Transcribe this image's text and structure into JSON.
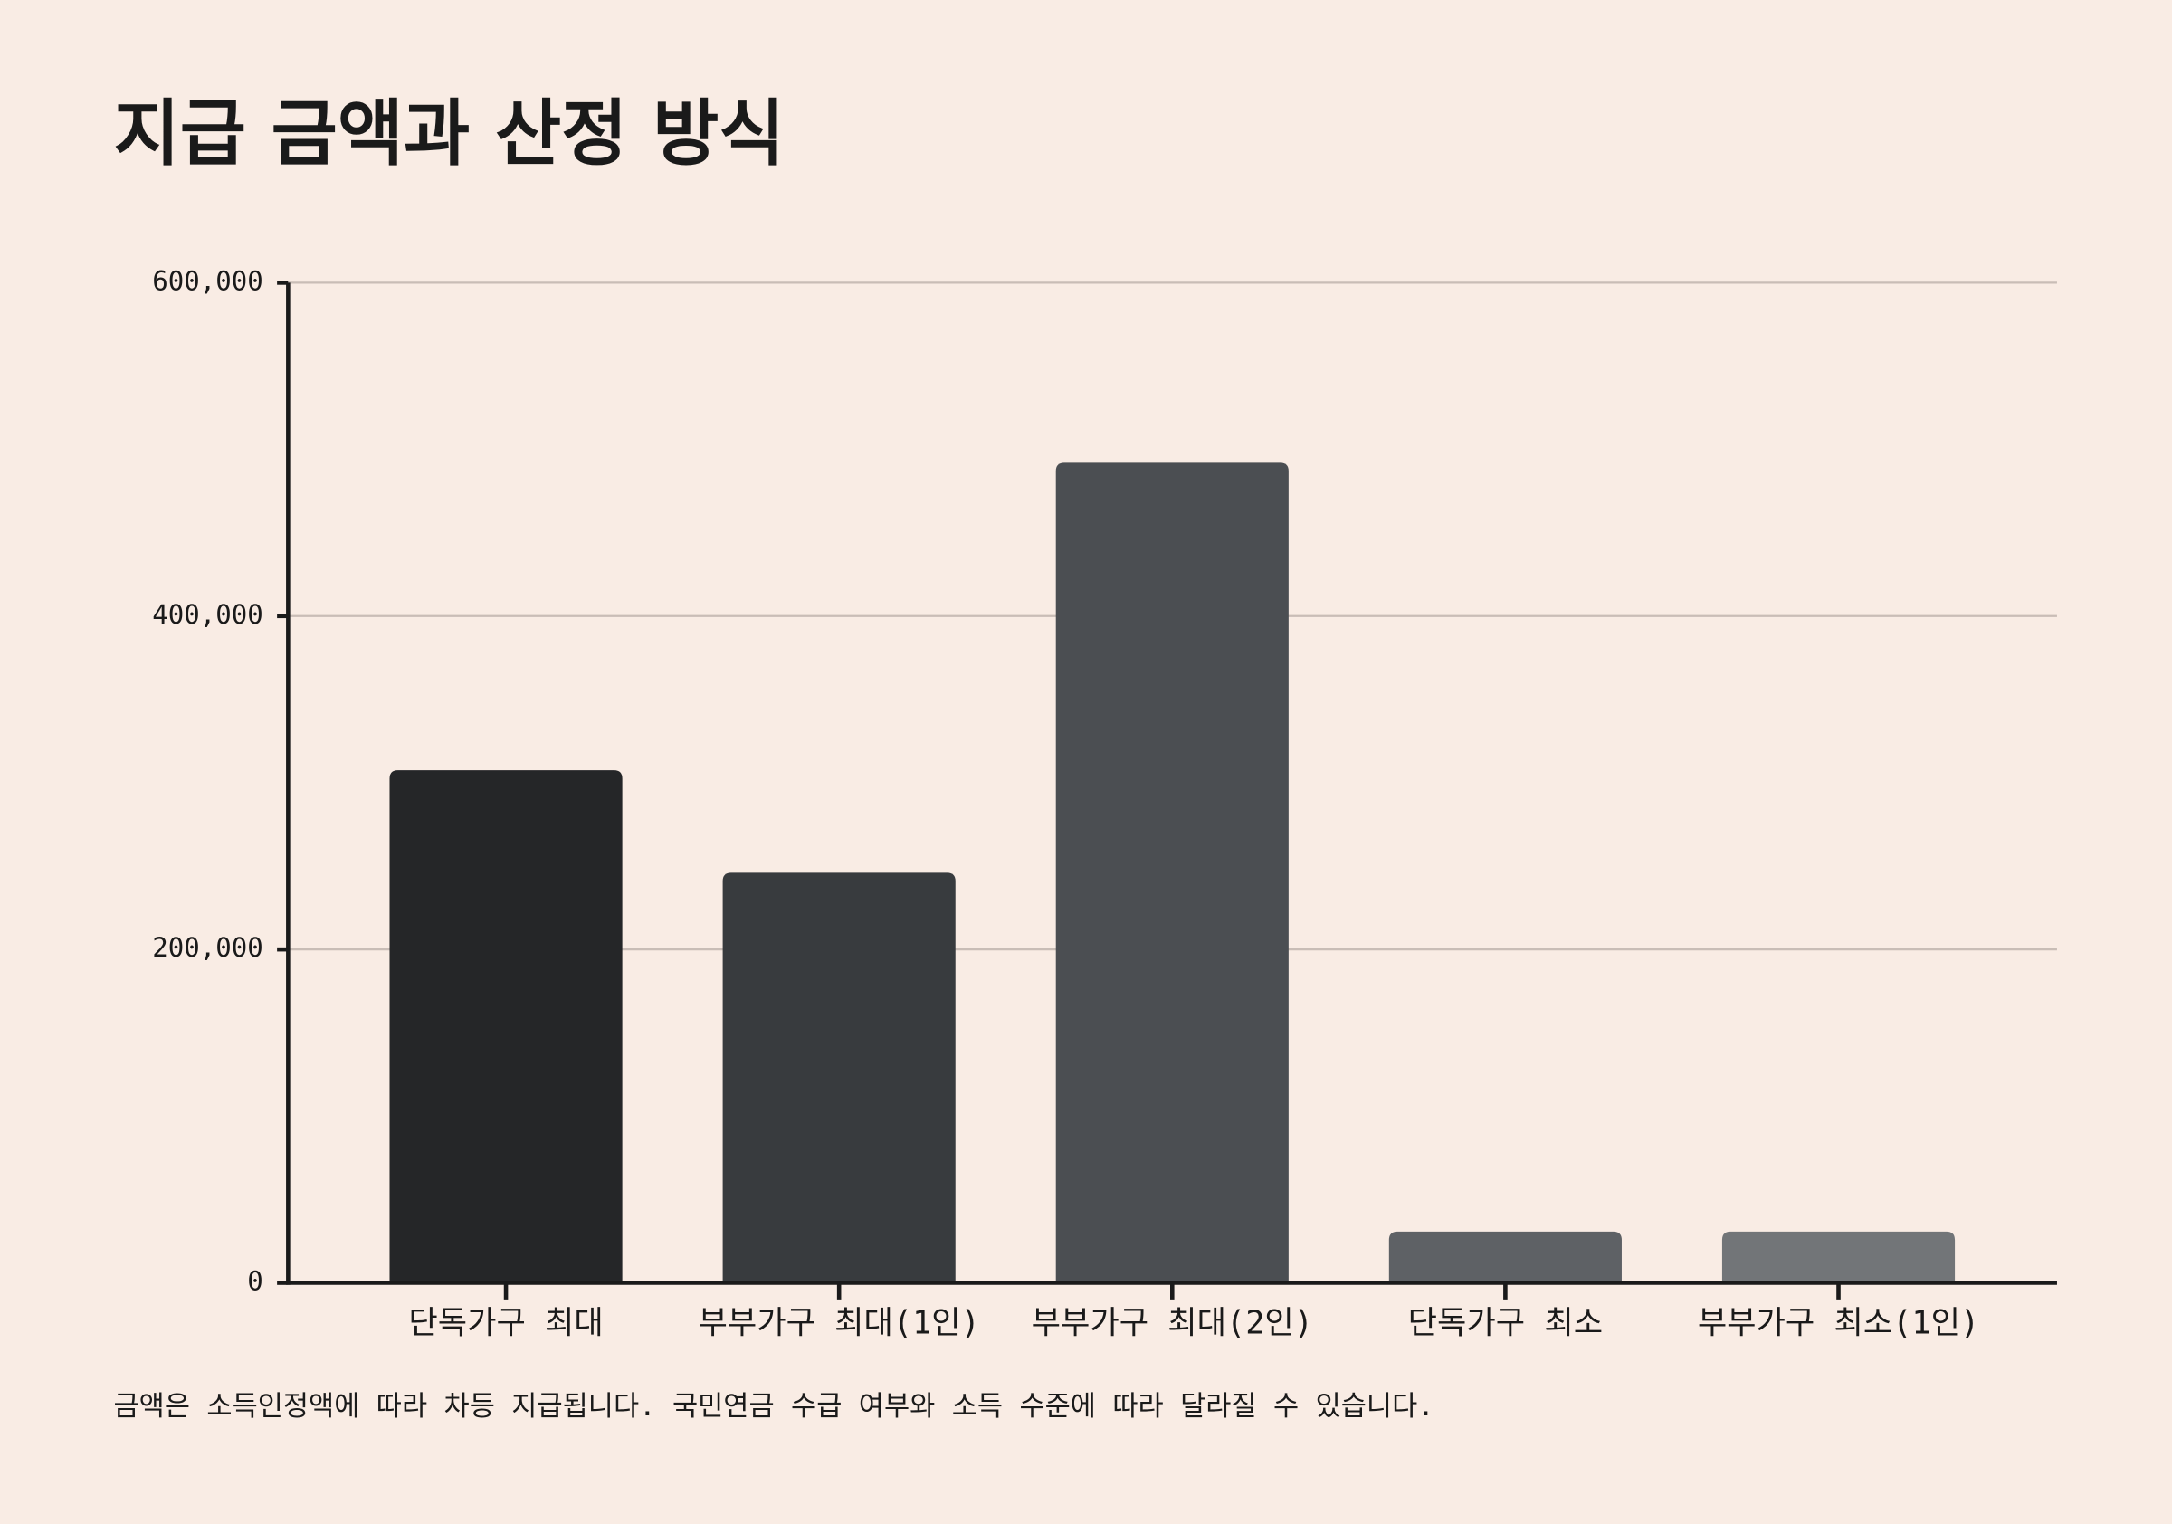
{
  "chart_data": {
    "type": "bar",
    "title": "지급 금액과 산정 방식",
    "categories": [
      "단독가구 최대",
      "부부가구 최대(1인)",
      "부부가구 최대(2인)",
      "단독가구 최소",
      "부부가구 최소(1인)"
    ],
    "values": [
      307500,
      246000,
      492000,
      30750,
      30750
    ],
    "colors": [
      "#252628",
      "#383b3e",
      "#4b4e52",
      "#5e6165",
      "#727578"
    ],
    "ylim": [
      0,
      600000
    ],
    "yticks": [
      0,
      {
        "value": 200000,
        "label": "200,000"
      },
      {
        "value": 400000,
        "label": "400,000"
      },
      {
        "value": 600000,
        "label": "600,000"
      }
    ],
    "grid": true,
    "note": "금액은 소득인정액에 따라 차등 지급됩니다. 국민연금 수급 여부와 소득 수준에 따라 달라질 수 있습니다."
  }
}
